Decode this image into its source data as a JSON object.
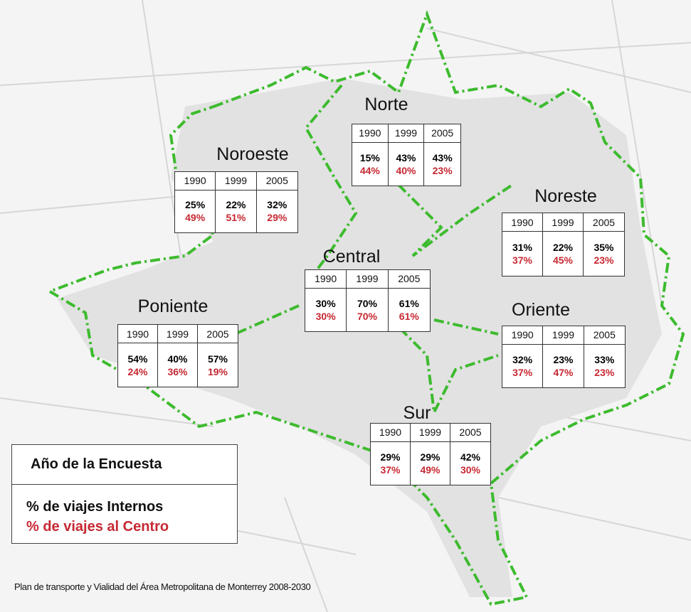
{
  "regions": [
    {
      "name": "Norte",
      "years": [
        "1990",
        "1999",
        "2005"
      ],
      "internos": [
        "15%",
        "43%",
        "43%"
      ],
      "centro": [
        "44%",
        "40%",
        "23%"
      ]
    },
    {
      "name": "Noroeste",
      "years": [
        "1990",
        "1999",
        "2005"
      ],
      "internos": [
        "25%",
        "22%",
        "32%"
      ],
      "centro": [
        "49%",
        "51%",
        "29%"
      ]
    },
    {
      "name": "Noreste",
      "years": [
        "1990",
        "1999",
        "2005"
      ],
      "internos": [
        "31%",
        "22%",
        "35%"
      ],
      "centro": [
        "37%",
        "45%",
        "23%"
      ]
    },
    {
      "name": "Central",
      "years": [
        "1990",
        "1999",
        "2005"
      ],
      "internos": [
        "30%",
        "70%",
        "61%"
      ],
      "centro": [
        "30%",
        "70%",
        "61%"
      ]
    },
    {
      "name": "Poniente",
      "years": [
        "1990",
        "1999",
        "2005"
      ],
      "internos": [
        "54%",
        "40%",
        "57%"
      ],
      "centro": [
        "24%",
        "36%",
        "19%"
      ]
    },
    {
      "name": "Oriente",
      "years": [
        "1990",
        "1999",
        "2005"
      ],
      "internos": [
        "32%",
        "23%",
        "33%"
      ],
      "centro": [
        "37%",
        "47%",
        "23%"
      ]
    },
    {
      "name": "Sur",
      "years": [
        "1990",
        "1999",
        "2005"
      ],
      "internos": [
        "29%",
        "29%",
        "42%"
      ],
      "centro": [
        "37%",
        "49%",
        "30%"
      ]
    }
  ],
  "legend": {
    "title": "Año de la Encuesta",
    "internos": "% de viajes Internos",
    "centro": "% de viajes al Centro"
  },
  "source": "Plan de transporte y Vialidad del Área Metropolitana de Monterrey 2008-2030"
}
